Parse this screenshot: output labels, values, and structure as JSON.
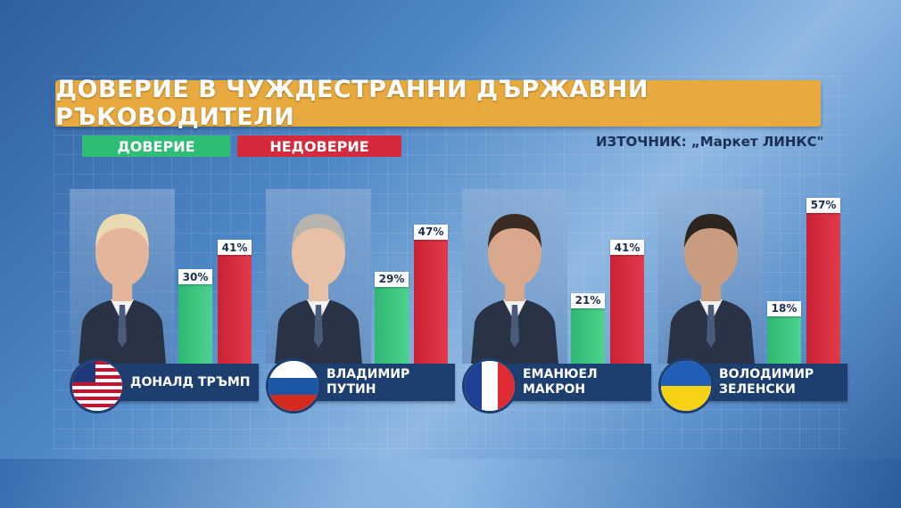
{
  "title": "ДОВЕРИЕ В ЧУЖДЕСТРАННИ ДЪРЖАВНИ РЪКОВОДИТЕЛИ",
  "source": "ИЗТОЧНИК: „Маркет ЛИНКС\"",
  "legend": {
    "trust": "ДОВЕРИЕ",
    "distrust": "НЕДОВЕРИЕ"
  },
  "colors": {
    "trust": "#2fbd75",
    "distrust": "#d52a3c",
    "title_bg": "#e8a93e",
    "name_bg": "#1d3f70"
  },
  "chart_data": {
    "type": "bar",
    "title": "ДОВЕРИЕ В ЧУЖДЕСТРАННИ ДЪРЖАВНИ РЪКОВОДИТЕЛИ",
    "categories": [
      "ДОНАЛД ТРЪМП",
      "ВЛАДИМИР ПУТИН",
      "ЕМАНЮЕЛ МАКРОН",
      "ВОЛОДИМИР ЗЕЛЕНСКИ"
    ],
    "series": [
      {
        "name": "ДОВЕРИЕ",
        "values": [
          30,
          29,
          21,
          18
        ]
      },
      {
        "name": "НЕДОВЕРИЕ",
        "values": [
          41,
          47,
          41,
          57
        ]
      }
    ],
    "ylim": [
      0,
      60
    ]
  },
  "leaders": [
    {
      "name": "ДОНАЛД ТРЪМП",
      "trust": 30,
      "distrust": 41,
      "trust_label": "30%",
      "distrust_label": "41%",
      "flag": "us-flag-icon"
    },
    {
      "name": "ВЛАДИМИР\nПУТИН",
      "trust": 29,
      "distrust": 47,
      "trust_label": "29%",
      "distrust_label": "47%",
      "flag": "russia-flag-icon"
    },
    {
      "name": "ЕМАНЮЕЛ\nМАКРОН",
      "trust": 21,
      "distrust": 41,
      "trust_label": "21%",
      "distrust_label": "41%",
      "flag": "france-flag-icon"
    },
    {
      "name": "ВОЛОДИМИР\nЗЕЛЕНСКИ",
      "trust": 18,
      "distrust": 57,
      "trust_label": "18%",
      "distrust_label": "57%",
      "flag": "ukraine-flag-icon"
    }
  ]
}
